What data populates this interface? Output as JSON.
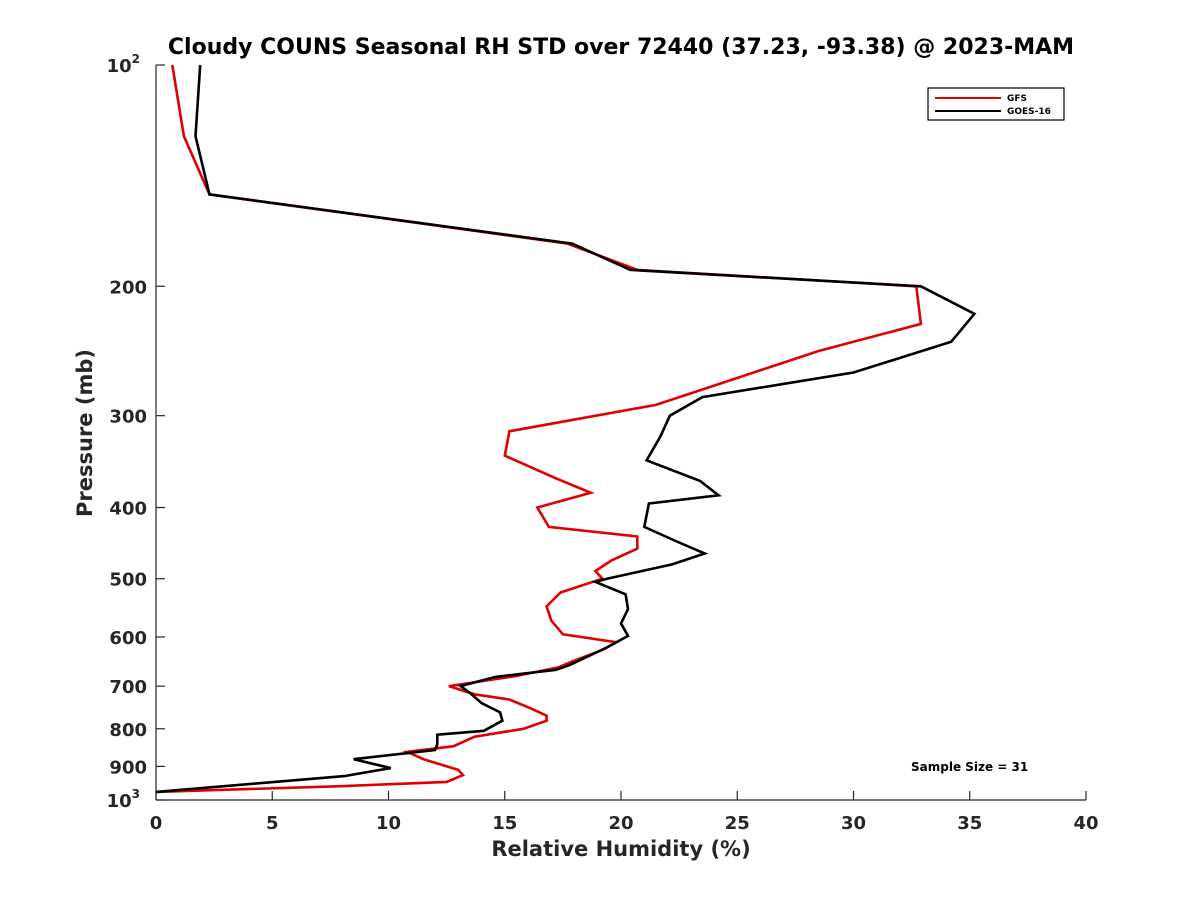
{
  "chart_data": {
    "type": "line",
    "title": "Cloudy COUNS Seasonal RH STD over 72440 (37.23, -93.38) @ 2023-MAM",
    "xlabel": "Relative Humidity (%)",
    "ylabel": "Pressure (mb)",
    "xlim": [
      0,
      40
    ],
    "ylim": [
      100,
      1000
    ],
    "yscale": "log",
    "y_reversed": true,
    "grid": false,
    "x_ticks": [
      0,
      5,
      10,
      15,
      20,
      25,
      30,
      35,
      40
    ],
    "x_tick_labels": [
      "0",
      "5",
      "10",
      "15",
      "20",
      "25",
      "30",
      "35",
      "40"
    ],
    "y_ticks": [
      {
        "value": 100,
        "label": "10",
        "exp": "2"
      },
      {
        "value": 200,
        "label": "200",
        "exp": ""
      },
      {
        "value": 300,
        "label": "300",
        "exp": ""
      },
      {
        "value": 400,
        "label": "400",
        "exp": ""
      },
      {
        "value": 500,
        "label": "500",
        "exp": ""
      },
      {
        "value": 600,
        "label": "600",
        "exp": ""
      },
      {
        "value": 700,
        "label": "700",
        "exp": ""
      },
      {
        "value": 800,
        "label": "800",
        "exp": ""
      },
      {
        "value": 900,
        "label": "900",
        "exp": ""
      },
      {
        "value": 1000,
        "label": "10",
        "exp": "3"
      }
    ],
    "legend": {
      "placement": "top-right",
      "entries": [
        "GFS",
        "GOES-16"
      ]
    },
    "annotation": "Sample Size = 31",
    "series": [
      {
        "name": "GFS",
        "color": "#e00000",
        "points": [
          [
            0.7,
            100
          ],
          [
            1.2,
            125
          ],
          [
            2.3,
            150
          ],
          [
            17.7,
            175
          ],
          [
            20.7,
            190
          ],
          [
            32.7,
            200
          ],
          [
            32.9,
            225
          ],
          [
            28.5,
            245
          ],
          [
            21.5,
            290
          ],
          [
            15.2,
            315
          ],
          [
            15.0,
            340
          ],
          [
            17.2,
            365
          ],
          [
            18.7,
            382
          ],
          [
            16.4,
            400
          ],
          [
            16.9,
            425
          ],
          [
            20.7,
            438
          ],
          [
            20.7,
            455
          ],
          [
            19.6,
            472
          ],
          [
            18.9,
            488
          ],
          [
            19.2,
            500
          ],
          [
            17.4,
            522
          ],
          [
            16.8,
            545
          ],
          [
            17.0,
            570
          ],
          [
            17.5,
            595
          ],
          [
            19.8,
            610
          ],
          [
            19.2,
            625
          ],
          [
            17.9,
            648
          ],
          [
            17.3,
            660
          ],
          [
            15.5,
            678
          ],
          [
            12.6,
            700
          ],
          [
            13.7,
            718
          ],
          [
            15.2,
            730
          ],
          [
            16.1,
            750
          ],
          [
            16.8,
            768
          ],
          [
            16.8,
            780
          ],
          [
            15.8,
            800
          ],
          [
            13.7,
            820
          ],
          [
            12.8,
            845
          ],
          [
            10.8,
            860
          ],
          [
            11.5,
            880
          ],
          [
            13.0,
            910
          ],
          [
            13.2,
            925
          ],
          [
            12.5,
            945
          ],
          [
            7.8,
            958
          ],
          [
            0.0,
            975
          ]
        ]
      },
      {
        "name": "GOES-16",
        "color": "#000000",
        "points": [
          [
            1.9,
            100
          ],
          [
            1.7,
            125
          ],
          [
            2.3,
            150
          ],
          [
            17.9,
            175
          ],
          [
            20.4,
            190
          ],
          [
            32.9,
            200
          ],
          [
            35.2,
            218
          ],
          [
            34.2,
            238
          ],
          [
            30.0,
            262
          ],
          [
            23.5,
            283
          ],
          [
            22.1,
            300
          ],
          [
            21.7,
            320
          ],
          [
            21.1,
            345
          ],
          [
            23.4,
            368
          ],
          [
            24.2,
            385
          ],
          [
            21.2,
            395
          ],
          [
            21.0,
            425
          ],
          [
            22.4,
            445
          ],
          [
            23.6,
            462
          ],
          [
            22.2,
            478
          ],
          [
            19.4,
            500
          ],
          [
            18.9,
            505
          ],
          [
            20.2,
            525
          ],
          [
            20.3,
            550
          ],
          [
            20.0,
            575
          ],
          [
            20.3,
            598
          ],
          [
            19.4,
            620
          ],
          [
            17.8,
            655
          ],
          [
            17.2,
            665
          ],
          [
            14.6,
            680
          ],
          [
            13.1,
            700
          ],
          [
            13.5,
            715
          ],
          [
            14.0,
            738
          ],
          [
            14.8,
            760
          ],
          [
            14.9,
            780
          ],
          [
            14.1,
            805
          ],
          [
            12.1,
            815
          ],
          [
            12.1,
            840
          ],
          [
            12.0,
            855
          ],
          [
            8.5,
            880
          ],
          [
            10.1,
            905
          ],
          [
            8.1,
            928
          ],
          [
            0.0,
            975
          ]
        ]
      }
    ]
  }
}
